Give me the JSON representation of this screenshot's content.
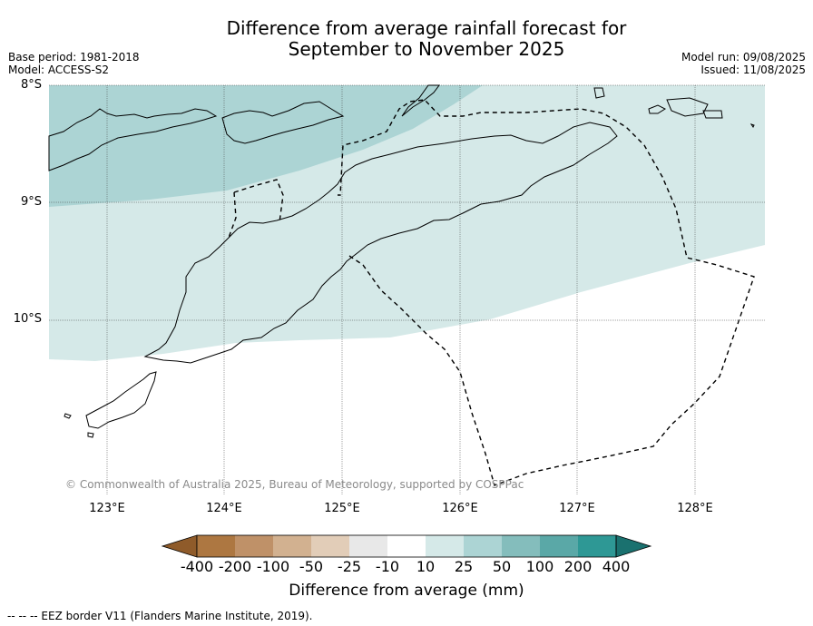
{
  "header": {
    "title_line1": "Difference from average rainfall forecast for",
    "title_line2": "September to November 2025",
    "base_period": "Base period: 1981-2018",
    "model": "Model: ACCESS-S2",
    "model_run": "Model run: 09/08/2025",
    "issued": "Issued: 11/08/2025"
  },
  "map": {
    "lat_labels": [
      "8°S",
      "9°S",
      "10°S"
    ],
    "lon_labels": [
      "123°E",
      "124°E",
      "125°E",
      "126°E",
      "127°E",
      "128°E"
    ],
    "copyright": "© Commonwealth of Australia 2025, Bureau of Meteorology, supported by COSPPac",
    "colors": {
      "band_25_50": "#acd4d4",
      "band_10_25": "#d5e9e8",
      "background": "#ffffff"
    }
  },
  "legend": {
    "ticks": [
      "-400",
      "-200",
      "-100",
      "-50",
      "-25",
      "-10",
      "10",
      "25",
      "50",
      "100",
      "200",
      "400"
    ],
    "colors": [
      "#8f5b2a",
      "#ad7741",
      "#bf9168",
      "#d2b190",
      "#e2cdb8",
      "#e8e8e8",
      "#ffffff",
      "#d5e9e8",
      "#acd4d4",
      "#84bdbc",
      "#5aa8a7",
      "#2e9895",
      "#1a716f"
    ],
    "title": "Difference from average (mm)"
  },
  "footnote": "--  --  -- EEZ border V11 (Flanders Marine Institute, 2019)."
}
